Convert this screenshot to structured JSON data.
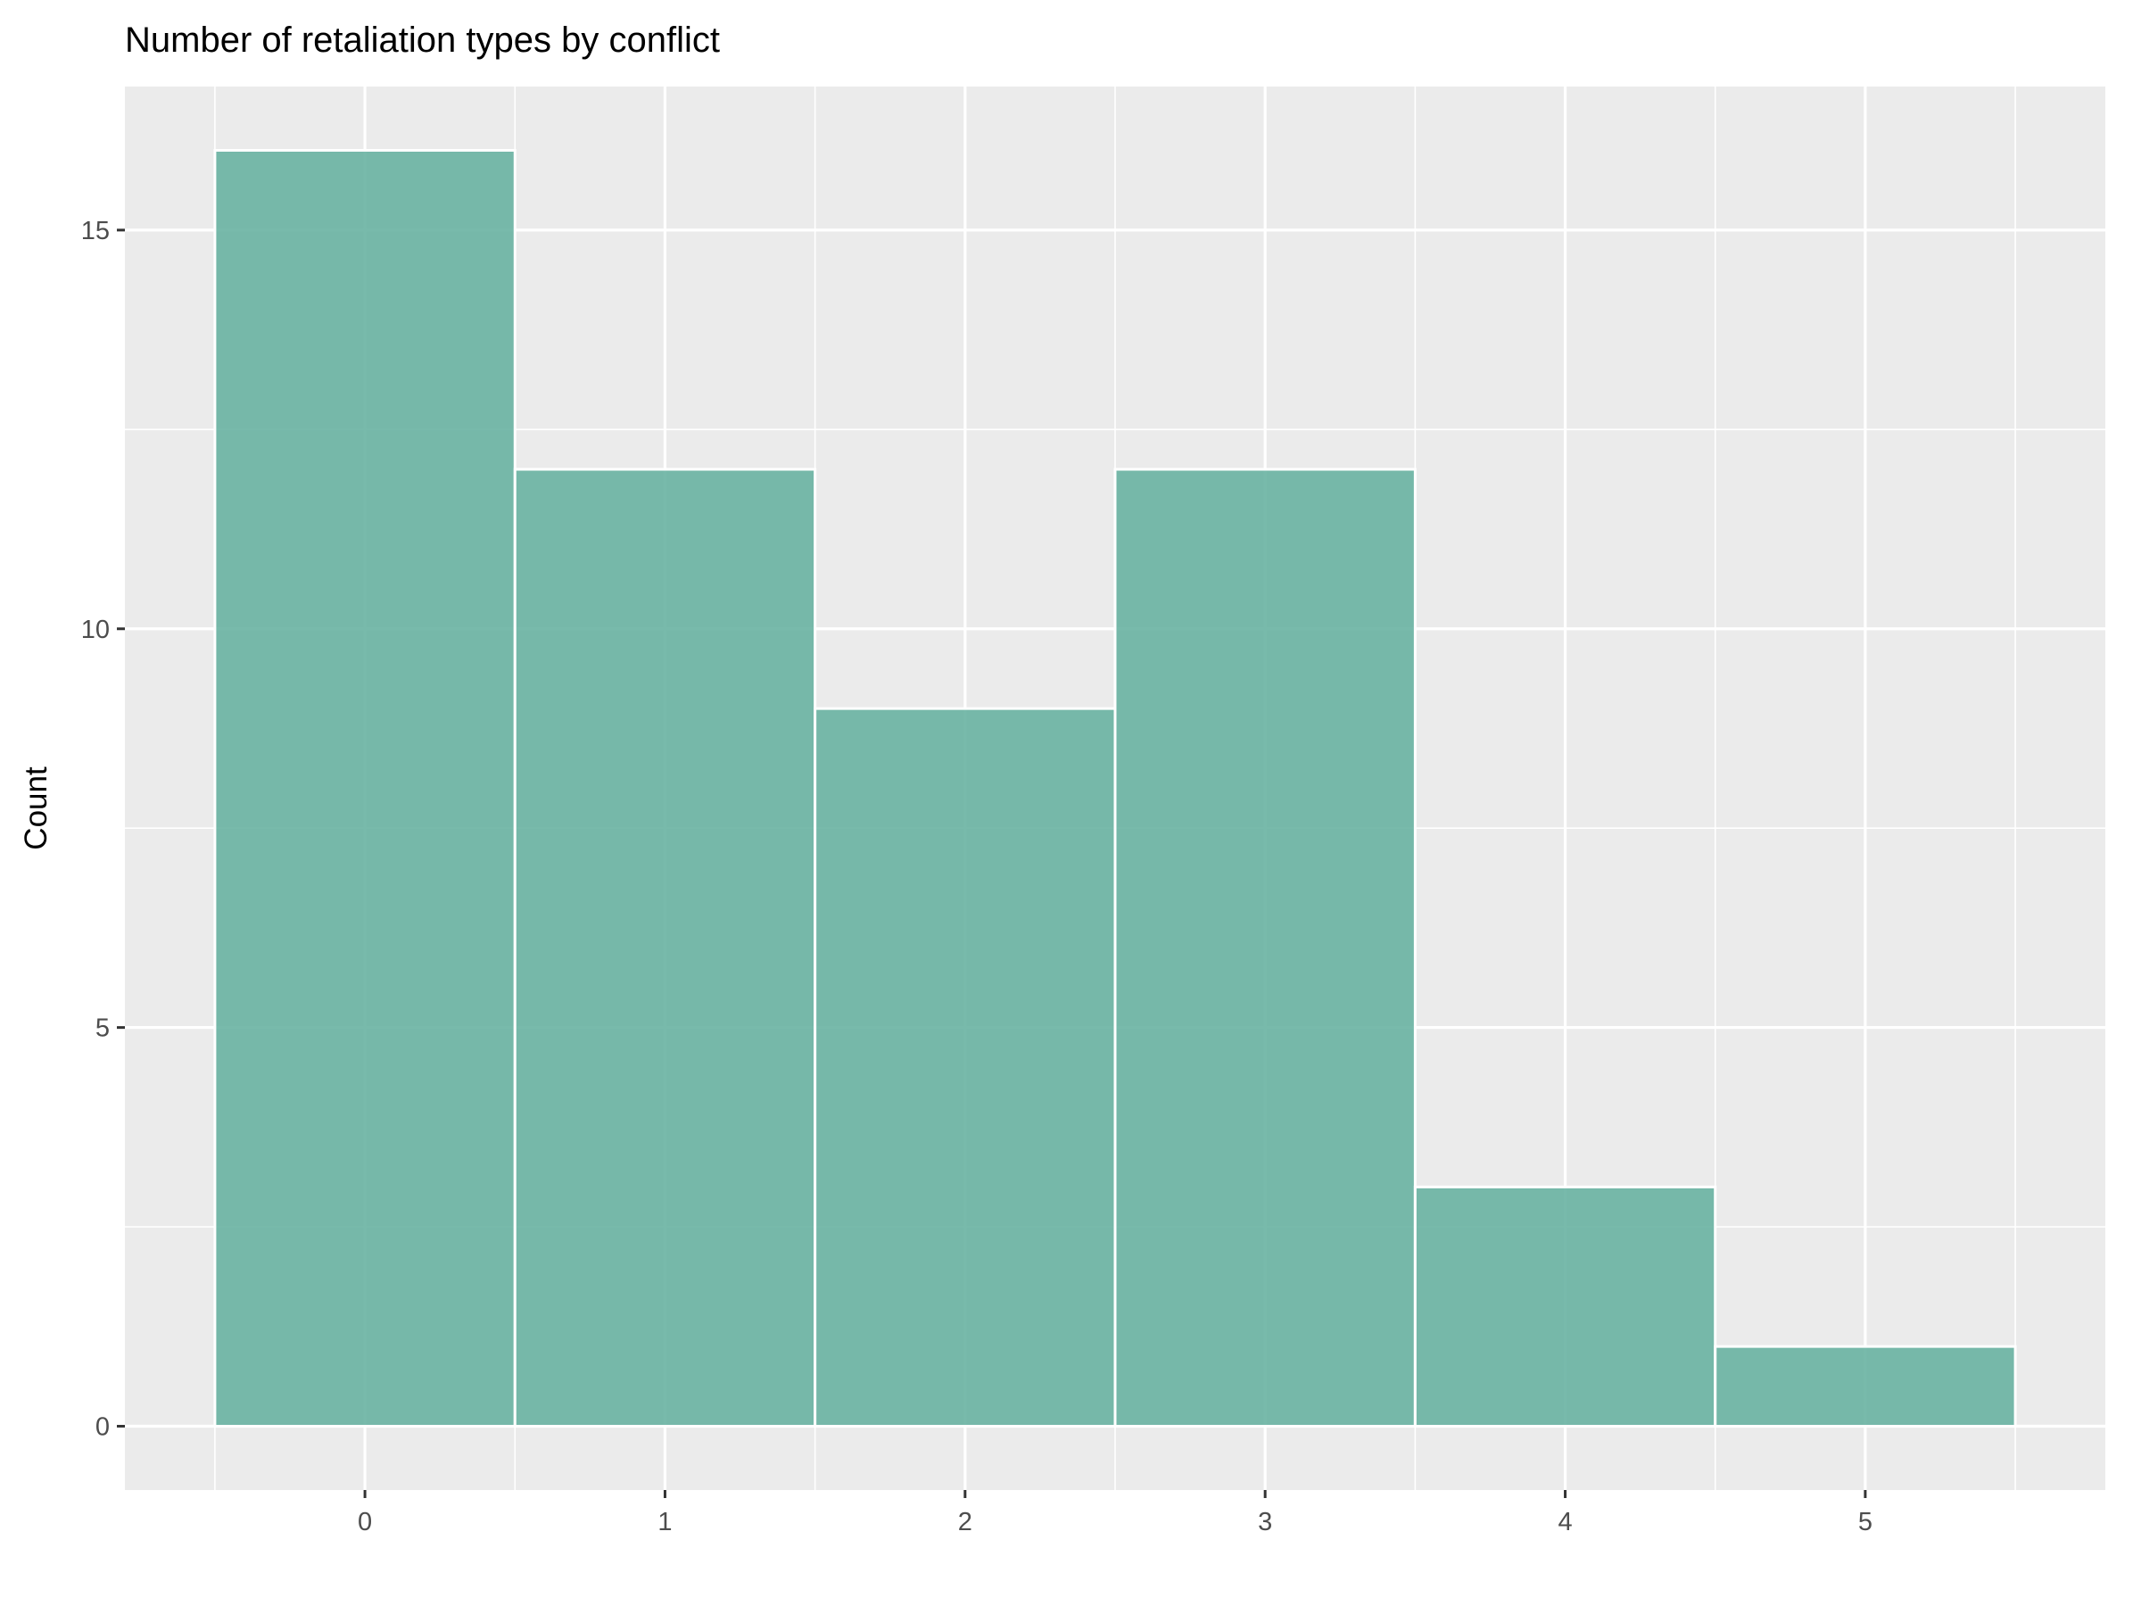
{
  "chart_data": {
    "type": "bar",
    "subtype": "histogram",
    "title": "Number of retaliation types by conflict",
    "xlabel": "",
    "ylabel": "Count",
    "categories": [
      0,
      1,
      2,
      3,
      4,
      5
    ],
    "values": [
      16,
      12,
      9,
      12,
      3,
      1
    ],
    "bin_width": 1,
    "xlim": [
      -0.8,
      5.8
    ],
    "ylim": [
      -0.8,
      16.8
    ],
    "x_ticks": [
      0,
      1,
      2,
      3,
      4,
      5
    ],
    "x_tick_labels": [
      "0",
      "1",
      "2",
      "3",
      "4",
      "5"
    ],
    "y_ticks": [
      0,
      5,
      10,
      15
    ],
    "y_tick_labels": [
      "0",
      "5",
      "10",
      "15"
    ],
    "y_minor_ticks": [
      2.5,
      7.5,
      12.5
    ],
    "x_minor_ticks": [
      -0.5,
      0.5,
      1.5,
      2.5,
      3.5,
      4.5,
      5.5
    ],
    "grid": true,
    "legend": "none",
    "colors": {
      "bar_fill": "#69b3a2",
      "bar_border": "#ffffff",
      "panel_background": "#ebebeb",
      "grid_line": "#ffffff",
      "tick_mark": "#333333"
    }
  }
}
